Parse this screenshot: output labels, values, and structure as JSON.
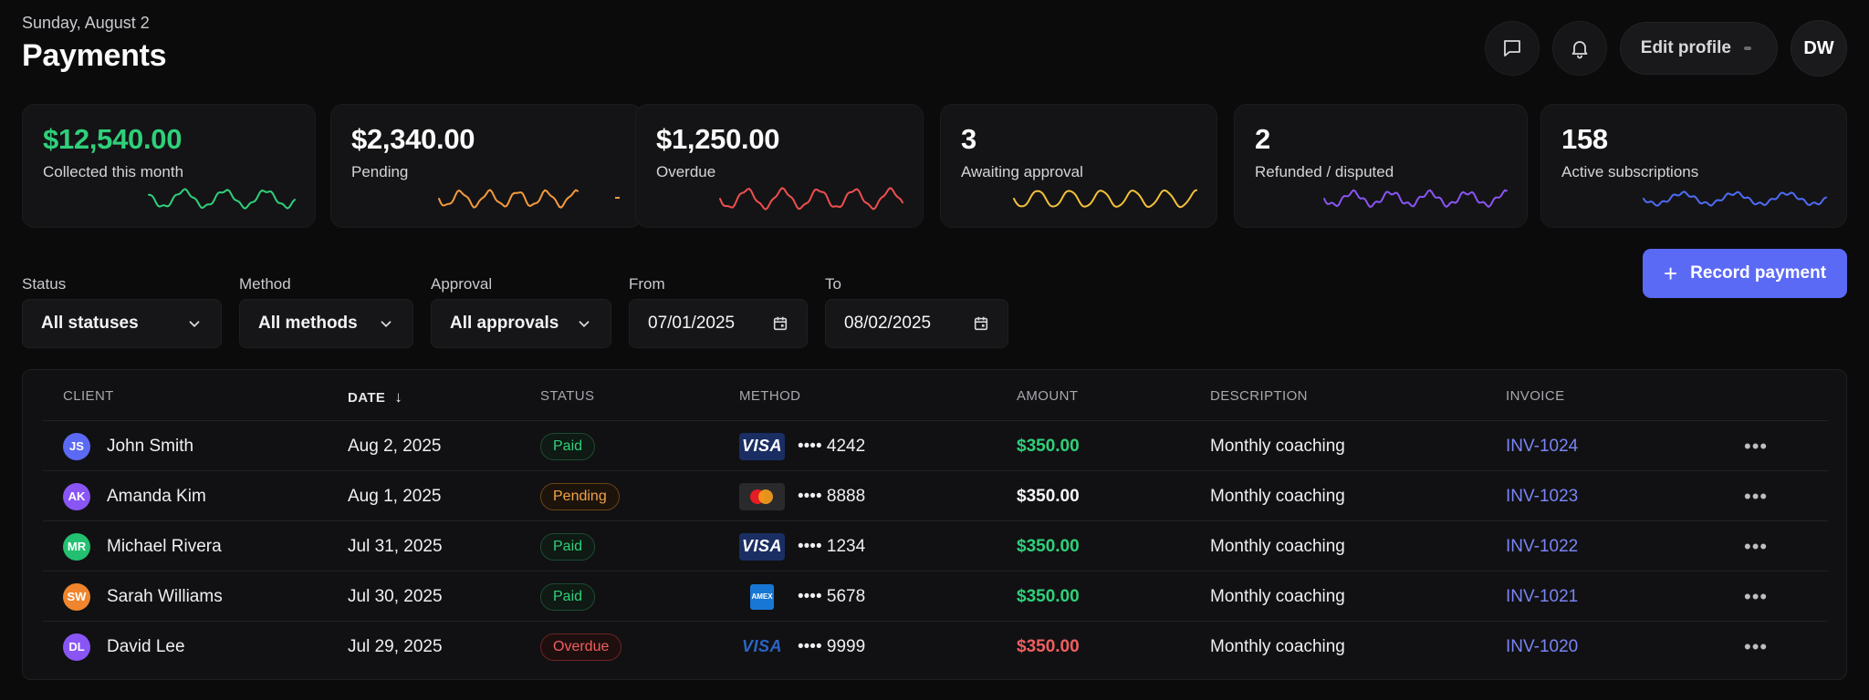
{
  "header": {
    "date": "Sunday, August 2",
    "title": "Payments",
    "edit_profile": "Edit profile",
    "avatar_initials": "DW"
  },
  "stats": [
    {
      "value": "$12,540.00",
      "label": "Collected this month",
      "color": "#2fd07a"
    },
    {
      "value": "$2,340.00",
      "label": "Pending",
      "color": "#f39a3d"
    },
    {
      "value": "$1,250.00",
      "label": "Overdue",
      "color": "#ef4f4f"
    },
    {
      "value": "3",
      "label": "Awaiting approval",
      "color": "#f3c03a"
    },
    {
      "value": "2",
      "label": "Refunded / disputed",
      "color": "#8a55f5"
    },
    {
      "value": "158",
      "label": "Active subscriptions",
      "color": "#4f6bf5"
    }
  ],
  "filters": {
    "status": {
      "label": "Status",
      "value": "All statuses"
    },
    "method": {
      "label": "Method",
      "value": "All methods"
    },
    "approval": {
      "label": "Approval",
      "value": "All approvals"
    },
    "from": {
      "label": "From",
      "value": "07/01/2025"
    },
    "to": {
      "label": "To",
      "value": "08/02/2025"
    }
  },
  "record_payment": "Record payment",
  "table": {
    "headers": {
      "client": "CLIENT",
      "date": "DATE",
      "status": "STATUS",
      "method": "METHOD",
      "amount": "AMOUNT",
      "description": "DESCRIPTION",
      "invoice": "INVOICE"
    },
    "rows": [
      {
        "initials": "JS",
        "avatar_color": "#5b6af5",
        "client": "John Smith",
        "date": "Aug 2, 2025",
        "status": "Paid",
        "card": "visa",
        "last4": "•••• 4242",
        "amount": "$350.00",
        "amount_state": "green",
        "description": "Monthly coaching",
        "invoice": "INV-1024"
      },
      {
        "initials": "AK",
        "avatar_color": "#8a55f5",
        "client": "Amanda Kim",
        "date": "Aug 1, 2025",
        "status": "Pending",
        "card": "mastercard",
        "last4": "•••• 8888",
        "amount": "$350.00",
        "amount_state": "white",
        "description": "Monthly coaching",
        "invoice": "INV-1023"
      },
      {
        "initials": "MR",
        "avatar_color": "#22c070",
        "client": "Michael Rivera",
        "date": "Jul 31, 2025",
        "status": "Paid",
        "card": "visa",
        "last4": "•••• 1234",
        "amount": "$350.00",
        "amount_state": "green",
        "description": "Monthly coaching",
        "invoice": "INV-1022"
      },
      {
        "initials": "SW",
        "avatar_color": "#f0852d",
        "client": "Sarah Williams",
        "date": "Jul 30, 2025",
        "status": "Paid",
        "card": "amex",
        "last4": "•••• 5678",
        "amount": "$350.00",
        "amount_state": "green",
        "description": "Monthly coaching",
        "invoice": "INV-1021"
      },
      {
        "initials": "DL",
        "avatar_color": "#8a55f5",
        "client": "David Lee",
        "date": "Jul 29, 2025",
        "status": "Overdue",
        "card": "visa-plain",
        "last4": "•••• 9999",
        "amount": "$350.00",
        "amount_state": "red",
        "description": "Monthly coaching",
        "invoice": "INV-1020"
      }
    ]
  }
}
